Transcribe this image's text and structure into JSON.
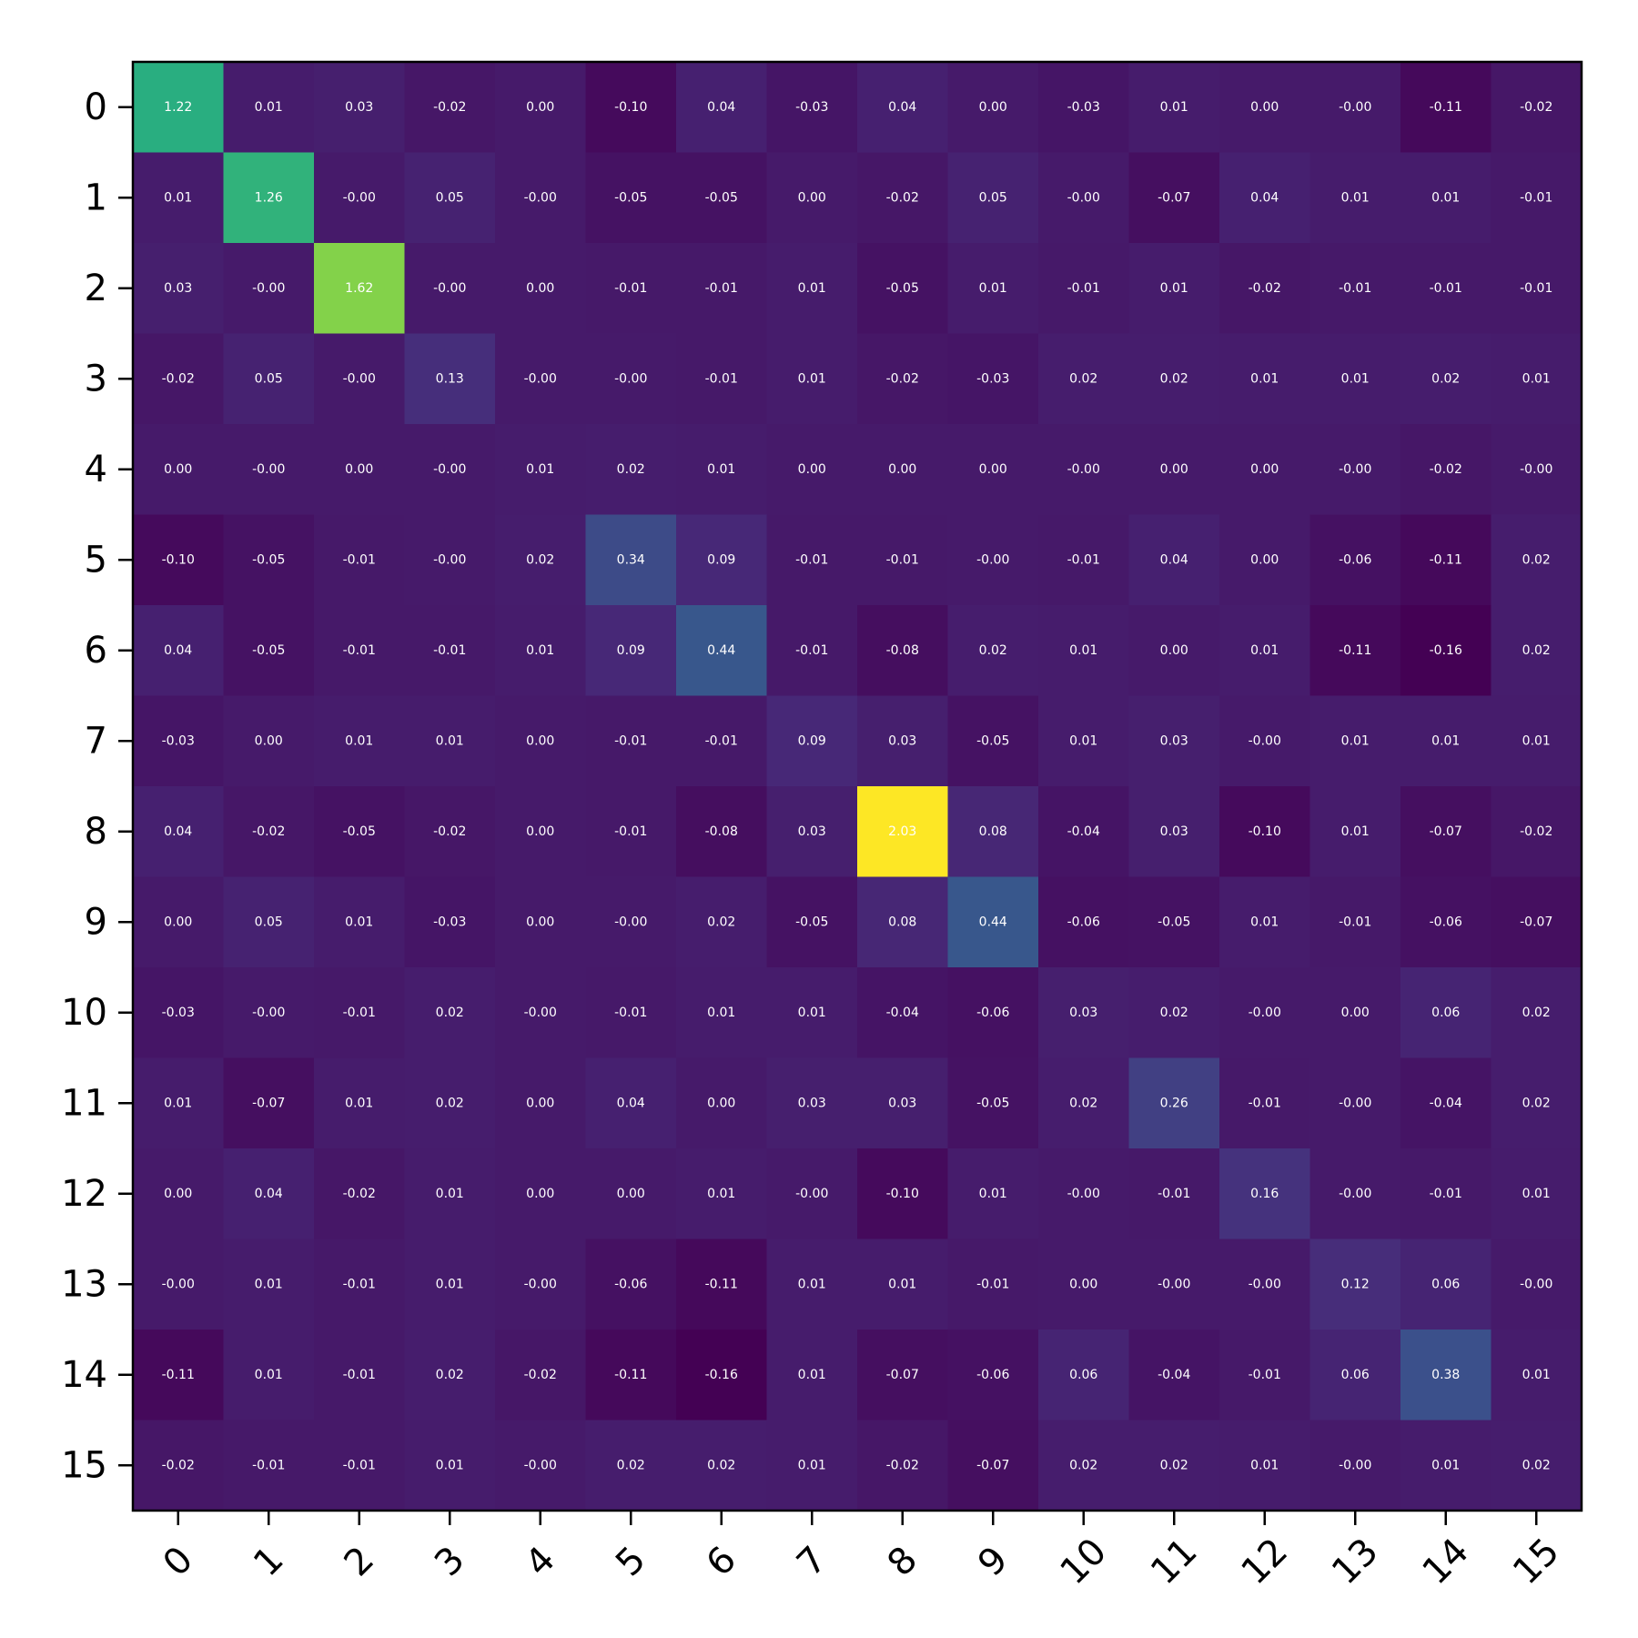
{
  "chart_data": {
    "type": "heatmap",
    "title": "",
    "xlabel": "",
    "ylabel": "",
    "x_categories": [
      "0",
      "1",
      "2",
      "3",
      "4",
      "5",
      "6",
      "7",
      "8",
      "9",
      "10",
      "11",
      "12",
      "13",
      "14",
      "15"
    ],
    "y_categories": [
      "0",
      "1",
      "2",
      "3",
      "4",
      "5",
      "6",
      "7",
      "8",
      "9",
      "10",
      "11",
      "12",
      "13",
      "14",
      "15"
    ],
    "colormap": "viridis",
    "color_range": [
      -0.16,
      2.03
    ],
    "values": [
      [
        1.22,
        0.01,
        0.03,
        -0.02,
        0.0,
        -0.1,
        0.04,
        -0.03,
        0.04,
        0.0,
        -0.03,
        0.01,
        0.0,
        -0.0,
        -0.11,
        -0.02
      ],
      [
        0.01,
        1.26,
        -0.0,
        0.05,
        -0.0,
        -0.05,
        -0.05,
        0.0,
        -0.02,
        0.05,
        -0.0,
        -0.07,
        0.04,
        0.01,
        0.01,
        -0.01
      ],
      [
        0.03,
        -0.0,
        1.62,
        -0.0,
        0.0,
        -0.01,
        -0.01,
        0.01,
        -0.05,
        0.01,
        -0.01,
        0.01,
        -0.02,
        -0.01,
        -0.01,
        -0.01
      ],
      [
        -0.02,
        0.05,
        -0.0,
        0.13,
        -0.0,
        -0.0,
        -0.01,
        0.01,
        -0.02,
        -0.03,
        0.02,
        0.02,
        0.01,
        0.01,
        0.02,
        0.01
      ],
      [
        0.0,
        -0.0,
        0.0,
        -0.0,
        0.01,
        0.02,
        0.01,
        0.0,
        0.0,
        0.0,
        -0.0,
        0.0,
        0.0,
        -0.0,
        -0.02,
        -0.0
      ],
      [
        -0.1,
        -0.05,
        -0.01,
        -0.0,
        0.02,
        0.34,
        0.09,
        -0.01,
        -0.01,
        -0.0,
        -0.01,
        0.04,
        0.0,
        -0.06,
        -0.11,
        0.02
      ],
      [
        0.04,
        -0.05,
        -0.01,
        -0.01,
        0.01,
        0.09,
        0.44,
        -0.01,
        -0.08,
        0.02,
        0.01,
        0.0,
        0.01,
        -0.11,
        -0.16,
        0.02
      ],
      [
        -0.03,
        0.0,
        0.01,
        0.01,
        0.0,
        -0.01,
        -0.01,
        0.09,
        0.03,
        -0.05,
        0.01,
        0.03,
        -0.0,
        0.01,
        0.01,
        0.01
      ],
      [
        0.04,
        -0.02,
        -0.05,
        -0.02,
        0.0,
        -0.01,
        -0.08,
        0.03,
        2.03,
        0.08,
        -0.04,
        0.03,
        -0.1,
        0.01,
        -0.07,
        -0.02
      ],
      [
        0.0,
        0.05,
        0.01,
        -0.03,
        0.0,
        -0.0,
        0.02,
        -0.05,
        0.08,
        0.44,
        -0.06,
        -0.05,
        0.01,
        -0.01,
        -0.06,
        -0.07
      ],
      [
        -0.03,
        -0.0,
        -0.01,
        0.02,
        -0.0,
        -0.01,
        0.01,
        0.01,
        -0.04,
        -0.06,
        0.03,
        0.02,
        -0.0,
        0.0,
        0.06,
        0.02
      ],
      [
        0.01,
        -0.07,
        0.01,
        0.02,
        0.0,
        0.04,
        0.0,
        0.03,
        0.03,
        -0.05,
        0.02,
        0.26,
        -0.01,
        -0.0,
        -0.04,
        0.02
      ],
      [
        0.0,
        0.04,
        -0.02,
        0.01,
        0.0,
        0.0,
        0.01,
        -0.0,
        -0.1,
        0.01,
        -0.0,
        -0.01,
        0.16,
        -0.0,
        -0.01,
        0.01
      ],
      [
        -0.0,
        0.01,
        -0.01,
        0.01,
        -0.0,
        -0.06,
        -0.11,
        0.01,
        0.01,
        -0.01,
        0.0,
        -0.0,
        -0.0,
        0.12,
        0.06,
        -0.0
      ],
      [
        -0.11,
        0.01,
        -0.01,
        0.02,
        -0.02,
        -0.11,
        -0.16,
        0.01,
        -0.07,
        -0.06,
        0.06,
        -0.04,
        -0.01,
        0.06,
        0.38,
        0.01
      ],
      [
        -0.02,
        -0.01,
        -0.01,
        0.01,
        -0.0,
        0.02,
        0.02,
        0.01,
        -0.02,
        -0.07,
        0.02,
        0.02,
        0.01,
        -0.0,
        0.01,
        0.02
      ]
    ],
    "cell_labels": [
      [
        "1.22",
        "0.01",
        "0.03",
        "-0.02",
        "0.00",
        "-0.10",
        "0.04",
        "-0.03",
        "0.04",
        "0.00",
        "-0.03",
        "0.01",
        "0.00",
        "-0.00",
        "-0.11",
        "-0.02"
      ],
      [
        "0.01",
        "1.26",
        "-0.00",
        "0.05",
        "-0.00",
        "-0.05",
        "-0.05",
        "0.00",
        "-0.02",
        "0.05",
        "-0.00",
        "-0.07",
        "0.04",
        "0.01",
        "0.01",
        "-0.01"
      ],
      [
        "0.03",
        "-0.00",
        "1.62",
        "-0.00",
        "0.00",
        "-0.01",
        "-0.01",
        "0.01",
        "-0.05",
        "0.01",
        "-0.01",
        "0.01",
        "-0.02",
        "-0.01",
        "-0.01",
        "-0.01"
      ],
      [
        "-0.02",
        "0.05",
        "-0.00",
        "0.13",
        "-0.00",
        "-0.00",
        "-0.01",
        "0.01",
        "-0.02",
        "-0.03",
        "0.02",
        "0.02",
        "0.01",
        "0.01",
        "0.02",
        "0.01"
      ],
      [
        "0.00",
        "-0.00",
        "0.00",
        "-0.00",
        "0.01",
        "0.02",
        "0.01",
        "0.00",
        "0.00",
        "0.00",
        "-0.00",
        "0.00",
        "0.00",
        "-0.00",
        "-0.02",
        "-0.00"
      ],
      [
        "-0.10",
        "-0.05",
        "-0.01",
        "-0.00",
        "0.02",
        "0.34",
        "0.09",
        "-0.01",
        "-0.01",
        "-0.00",
        "-0.01",
        "0.04",
        "0.00",
        "-0.06",
        "-0.11",
        "0.02"
      ],
      [
        "0.04",
        "-0.05",
        "-0.01",
        "-0.01",
        "0.01",
        "0.09",
        "0.44",
        "-0.01",
        "-0.08",
        "0.02",
        "0.01",
        "0.00",
        "0.01",
        "-0.11",
        "-0.16",
        "0.02"
      ],
      [
        "-0.03",
        "0.00",
        "0.01",
        "0.01",
        "0.00",
        "-0.01",
        "-0.01",
        "0.09",
        "0.03",
        "-0.05",
        "0.01",
        "0.03",
        "-0.00",
        "0.01",
        "0.01",
        "0.01"
      ],
      [
        "0.04",
        "-0.02",
        "-0.05",
        "-0.02",
        "0.00",
        "-0.01",
        "-0.08",
        "0.03",
        "2.03",
        "0.08",
        "-0.04",
        "0.03",
        "-0.10",
        "0.01",
        "-0.07",
        "-0.02"
      ],
      [
        "0.00",
        "0.05",
        "0.01",
        "-0.03",
        "0.00",
        "-0.00",
        "0.02",
        "-0.05",
        "0.08",
        "0.44",
        "-0.06",
        "-0.05",
        "0.01",
        "-0.01",
        "-0.06",
        "-0.07"
      ],
      [
        "-0.03",
        "-0.00",
        "-0.01",
        "0.02",
        "-0.00",
        "-0.01",
        "0.01",
        "0.01",
        "-0.04",
        "-0.06",
        "0.03",
        "0.02",
        "-0.00",
        "0.00",
        "0.06",
        "0.02"
      ],
      [
        "0.01",
        "-0.07",
        "0.01",
        "0.02",
        "0.00",
        "0.04",
        "0.00",
        "0.03",
        "0.03",
        "-0.05",
        "0.02",
        "0.26",
        "-0.01",
        "-0.00",
        "-0.04",
        "0.02"
      ],
      [
        "0.00",
        "0.04",
        "-0.02",
        "0.01",
        "0.00",
        "0.00",
        "0.01",
        "-0.00",
        "-0.10",
        "0.01",
        "-0.00",
        "-0.01",
        "0.16",
        "-0.00",
        "-0.01",
        "0.01"
      ],
      [
        "-0.00",
        "0.01",
        "-0.01",
        "0.01",
        "-0.00",
        "-0.06",
        "-0.11",
        "0.01",
        "0.01",
        "-0.01",
        "0.00",
        "-0.00",
        "-0.00",
        "0.12",
        "0.06",
        "-0.00"
      ],
      [
        "-0.11",
        "0.01",
        "-0.01",
        "0.02",
        "-0.02",
        "-0.11",
        "-0.16",
        "0.01",
        "-0.07",
        "-0.06",
        "0.06",
        "-0.04",
        "-0.01",
        "0.06",
        "0.38",
        "0.01"
      ],
      [
        "-0.02",
        "-0.01",
        "-0.01",
        "0.01",
        "-0.00",
        "0.02",
        "0.02",
        "0.01",
        "-0.02",
        "-0.07",
        "0.02",
        "0.02",
        "0.01",
        "-0.00",
        "0.01",
        "0.02"
      ]
    ],
    "grid": false,
    "legend": "none",
    "x_tick_rotation": "45 degrees"
  }
}
